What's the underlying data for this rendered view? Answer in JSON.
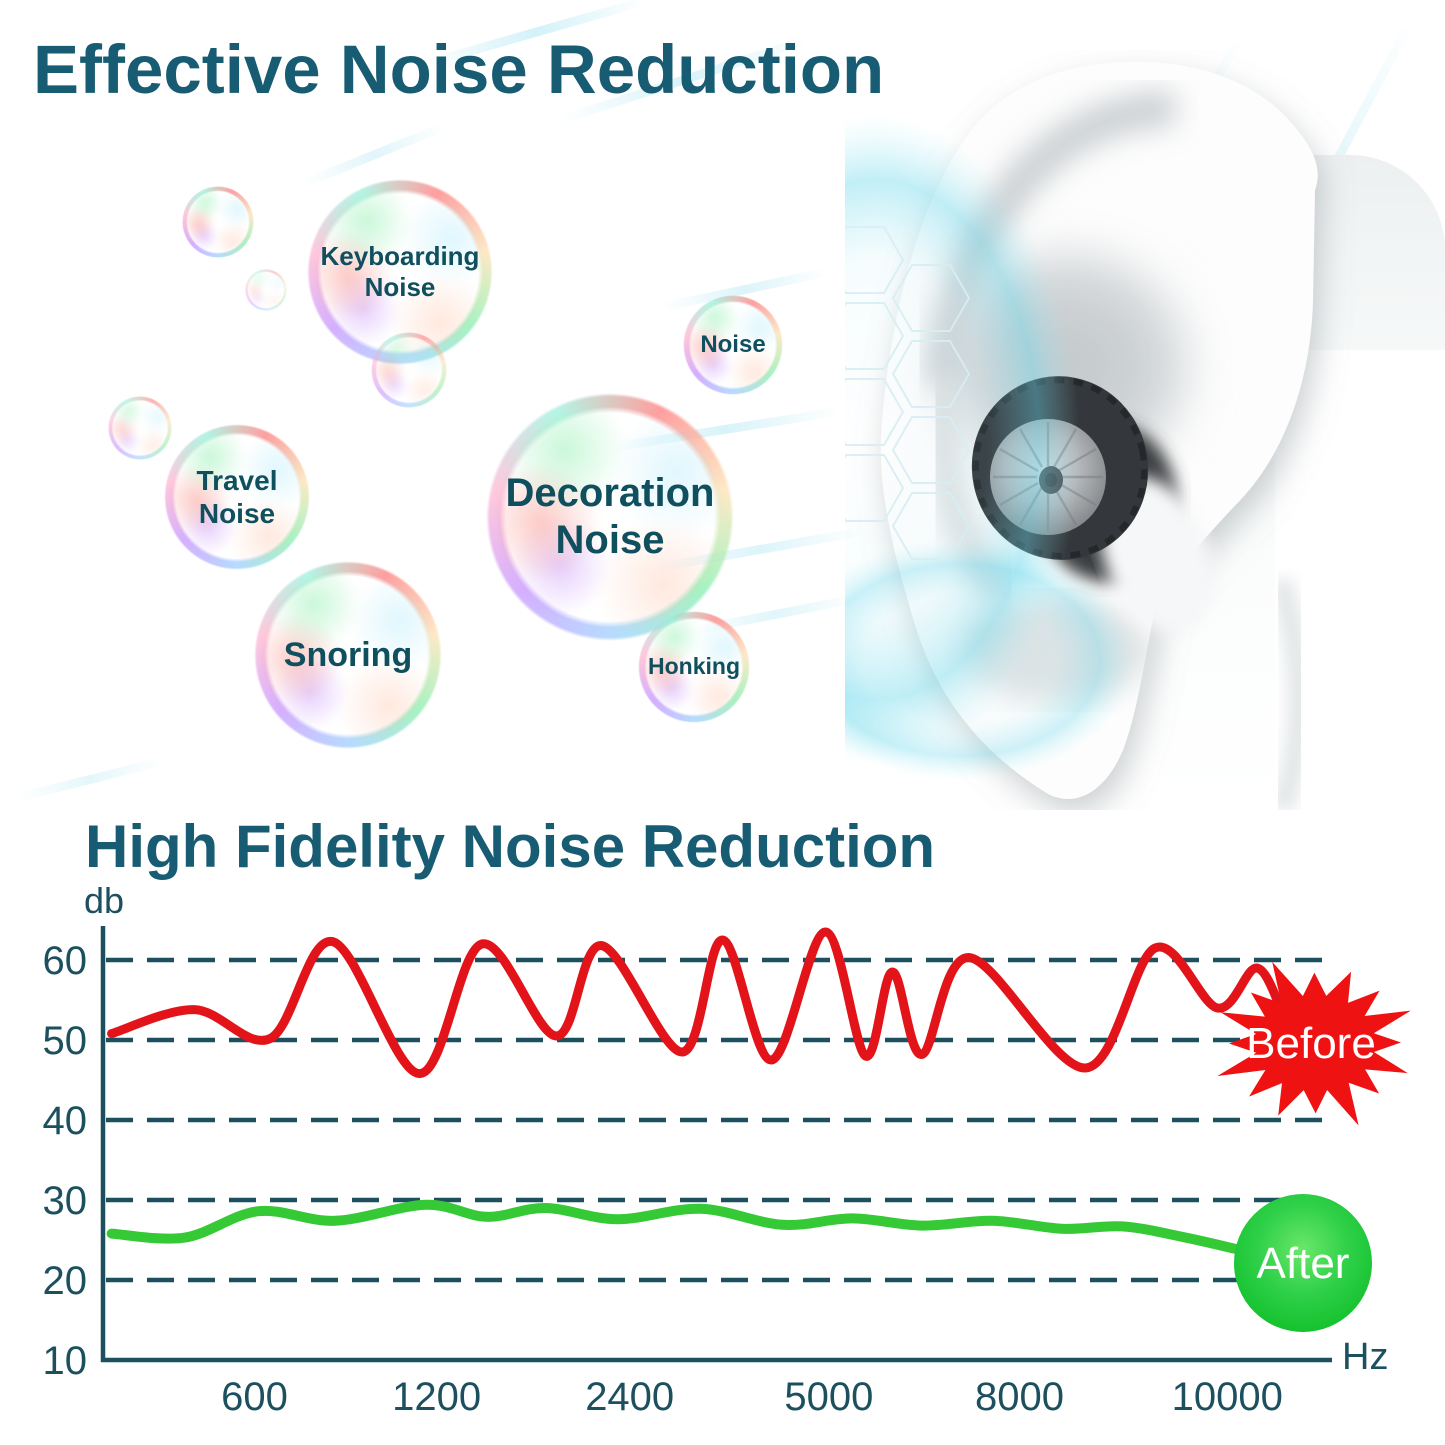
{
  "header": {
    "title": "Effective Noise Reduction"
  },
  "bubbles": [
    {
      "id": "keyboarding",
      "label": "Keyboarding\nNoise"
    },
    {
      "id": "noise",
      "label": "Noise"
    },
    {
      "id": "travel",
      "label": "Travel\nNoise"
    },
    {
      "id": "decoration",
      "label": "Decoration\nNoise"
    },
    {
      "id": "snoring",
      "label": "Snoring"
    },
    {
      "id": "honking",
      "label": "Honking"
    }
  ],
  "section2": {
    "title": "High Fidelity Noise Reduction"
  },
  "chart_data": {
    "type": "line",
    "title": "High Fidelity Noise Reduction",
    "y_axis": {
      "label": "db",
      "ticks": [
        10,
        20,
        30,
        40,
        50,
        60
      ],
      "range": [
        10,
        65
      ],
      "gridlines": "dashed"
    },
    "x_axis": {
      "label": "Hz",
      "tick_labels": [
        "600",
        "1200",
        "2400",
        "5000",
        "8000",
        "10000"
      ],
      "tick_positions": [
        0.124,
        0.273,
        0.431,
        0.594,
        0.75,
        0.92
      ]
    },
    "legend_position": "right-on-chart",
    "colors": {
      "axis": "#1d505e",
      "before": "#e31419",
      "after": "#35c935",
      "before_badge": "#ee1212",
      "after_badge": "#2ed044",
      "badge_text": "#ffffff"
    },
    "series": [
      {
        "name": "Before",
        "unit": "db",
        "badge": "starburst",
        "points": [
          [
            0.007,
            50.8
          ],
          [
            0.075,
            53.8
          ],
          [
            0.137,
            50.2
          ],
          [
            0.188,
            62.3
          ],
          [
            0.259,
            45.8
          ],
          [
            0.31,
            62.0
          ],
          [
            0.371,
            50.5
          ],
          [
            0.408,
            61.8
          ],
          [
            0.474,
            48.5
          ],
          [
            0.507,
            62.5
          ],
          [
            0.547,
            47.5
          ],
          [
            0.591,
            63.5
          ],
          [
            0.624,
            48.0
          ],
          [
            0.646,
            58.5
          ],
          [
            0.67,
            48.2
          ],
          [
            0.709,
            60.3
          ],
          [
            0.804,
            46.5
          ],
          [
            0.861,
            61.5
          ],
          [
            0.912,
            54.0
          ],
          [
            0.944,
            59.0
          ],
          [
            0.965,
            53.5
          ]
        ]
      },
      {
        "name": "After",
        "unit": "db",
        "badge": "circle",
        "points": [
          [
            0.007,
            25.8
          ],
          [
            0.067,
            25.3
          ],
          [
            0.127,
            28.6
          ],
          [
            0.19,
            27.4
          ],
          [
            0.264,
            29.4
          ],
          [
            0.314,
            27.9
          ],
          [
            0.362,
            29.0
          ],
          [
            0.421,
            27.6
          ],
          [
            0.489,
            28.9
          ],
          [
            0.556,
            26.9
          ],
          [
            0.613,
            27.7
          ],
          [
            0.67,
            26.8
          ],
          [
            0.728,
            27.4
          ],
          [
            0.785,
            26.4
          ],
          [
            0.834,
            26.7
          ],
          [
            0.883,
            25.4
          ],
          [
            0.932,
            23.7
          ]
        ]
      }
    ]
  }
}
